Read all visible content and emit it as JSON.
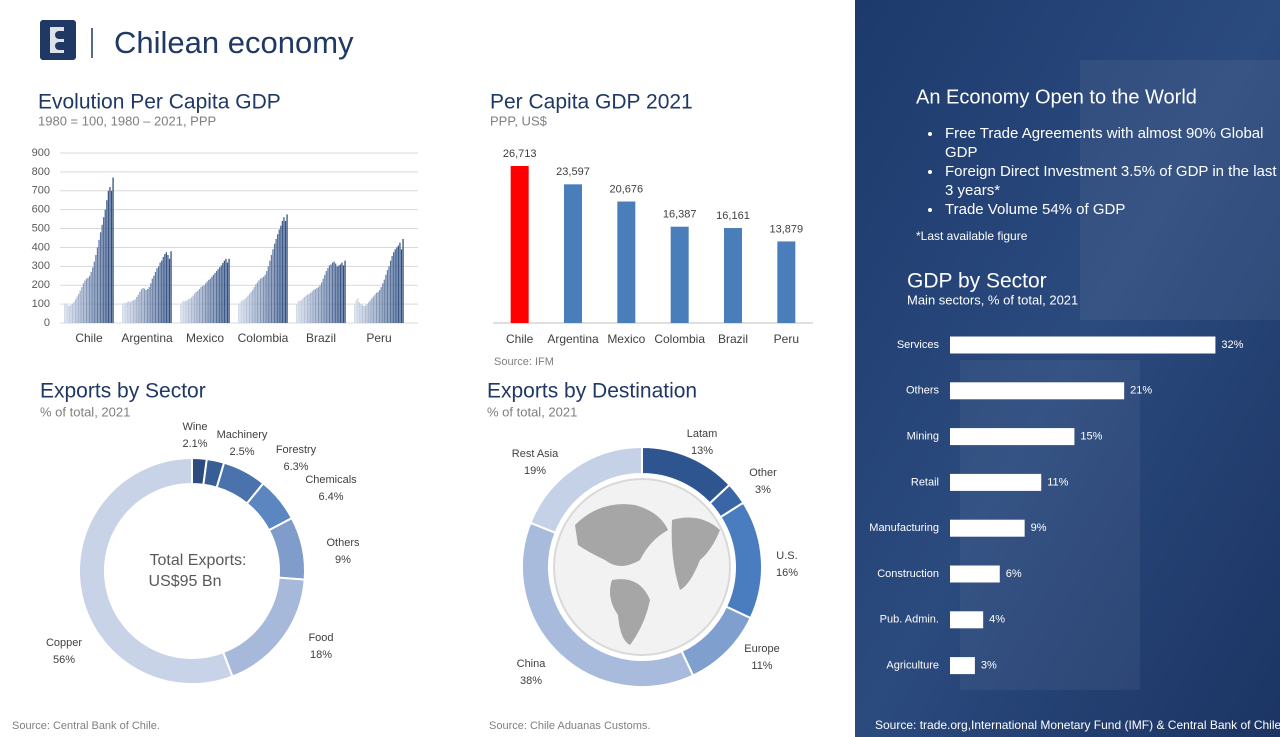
{
  "header": {
    "title": "Chilean economy"
  },
  "chart_data": [
    {
      "type": "grouped-bar",
      "title": "Evolution Per Capita GDP",
      "subtitle": "1980 = 100, 1980 – 2021, PPP",
      "categories": [
        "Chile",
        "Argentina",
        "Mexico",
        "Colombia",
        "Brazil",
        "Peru"
      ],
      "values": [
        [
          100,
          105,
          94,
          90,
          95,
          102,
          112,
          125,
          140,
          155,
          172,
          190,
          210,
          225,
          235,
          240,
          250,
          270,
          295,
          325,
          360,
          400,
          440,
          480,
          520,
          560,
          600,
          650,
          700,
          720,
          700,
          770
        ],
        [
          100,
          108,
          104,
          112,
          115,
          110,
          118,
          120,
          125,
          138,
          150,
          165,
          178,
          185,
          182,
          175,
          180,
          190,
          210,
          235,
          250,
          270,
          290,
          300,
          320,
          330,
          350,
          365,
          375,
          360,
          340,
          380
        ],
        [
          100,
          112,
          118,
          115,
          120,
          125,
          130,
          135,
          145,
          155,
          165,
          170,
          180,
          190,
          195,
          200,
          210,
          220,
          228,
          235,
          245,
          255,
          265,
          275,
          285,
          295,
          305,
          318,
          330,
          340,
          320,
          340
        ],
        [
          100,
          110,
          118,
          122,
          128,
          135,
          145,
          155,
          165,
          175,
          190,
          205,
          215,
          225,
          235,
          240,
          245,
          255,
          275,
          300,
          330,
          360,
          390,
          420,
          445,
          470,
          495,
          515,
          540,
          560,
          540,
          575
        ],
        [
          100,
          115,
          118,
          120,
          130,
          138,
          145,
          150,
          155,
          160,
          168,
          175,
          180,
          185,
          190,
          200,
          215,
          235,
          255,
          275,
          290,
          305,
          310,
          320,
          325,
          315,
          300,
          305,
          310,
          320,
          305,
          330
        ],
        [
          100,
          120,
          130,
          110,
          100,
          95,
          90,
          92,
          100,
          110,
          120,
          130,
          140,
          150,
          160,
          165,
          175,
          190,
          210,
          230,
          255,
          280,
          300,
          330,
          355,
          375,
          390,
          400,
          410,
          425,
          390,
          445
        ]
      ],
      "color_range": [
        "#d3dcec",
        "#2b4a7e"
      ],
      "ylim": [
        0,
        900
      ],
      "yticks": [
        0,
        100,
        200,
        300,
        400,
        500,
        600,
        700,
        800,
        900
      ],
      "grid": true
    },
    {
      "type": "bar",
      "title": "Per Capita GDP 2021",
      "subtitle": "PPP, US$",
      "categories": [
        "Chile",
        "Argentina",
        "Mexico",
        "Colombia",
        "Brazil",
        "Peru"
      ],
      "values": [
        26713,
        23597,
        20676,
        16387,
        16161,
        13879
      ],
      "value_labels": [
        "26,713",
        "23,597",
        "20,676",
        "16,387",
        "16,161",
        "13,879"
      ],
      "colors": [
        "#ff0000",
        "#4a7ebb",
        "#4a7ebb",
        "#4a7ebb",
        "#4a7ebb",
        "#4a7ebb"
      ],
      "ylim": [
        0,
        30000
      ],
      "source": "Source: IFM"
    },
    {
      "type": "donut",
      "title": "Exports by Sector",
      "subtitle": "% of total, 2021",
      "categories": [
        "Wine",
        "Machinery",
        "Forestry",
        "Chemicals",
        "Others",
        "Food",
        "Copper"
      ],
      "values": [
        2.1,
        2.5,
        6.3,
        6.4,
        9,
        18,
        56
      ],
      "value_labels": [
        "2.1%",
        "2.5%",
        "6.3%",
        "6.4%",
        "9%",
        "18%",
        "56%"
      ],
      "colors": [
        "#2c4c80",
        "#385e96",
        "#4a72ad",
        "#5b86c0",
        "#7f9cca",
        "#a7b9da",
        "#c9d3e7"
      ],
      "center_text": [
        "Total Exports:",
        "US$95 Bn"
      ],
      "source": "Source: Central Bank of Chile."
    },
    {
      "type": "donut",
      "title": "Exports by Destination",
      "subtitle": "% of total, 2021",
      "categories": [
        "Latam",
        "Other",
        "U.S.",
        "Europe",
        "China",
        "Rest Asia"
      ],
      "values": [
        13,
        3,
        16,
        11,
        38,
        19
      ],
      "value_labels": [
        "13%",
        "3%",
        "16%",
        "11%",
        "38%",
        "19%"
      ],
      "colors": [
        "#2f5590",
        "#3a66a8",
        "#4a7cc0",
        "#7f9fcf",
        "#a8bbdc",
        "#c5d1e6"
      ],
      "source": "Source: Chile Aduanas Customs."
    },
    {
      "type": "hbar",
      "title": "GDP by Sector",
      "subtitle": "Main sectors, % of total, 2021",
      "categories": [
        "Services",
        "Others",
        "Mining",
        "Retail",
        "Manufacturing",
        "Construction",
        "Pub. Admin.",
        "Agriculture"
      ],
      "values": [
        32,
        21,
        15,
        11,
        9,
        6,
        4,
        3
      ],
      "value_labels": [
        "32%",
        "21%",
        "15%",
        "11%",
        "9%",
        "6%",
        "4%",
        "3%"
      ],
      "color": "#ffffff",
      "xlim": [
        0,
        34
      ]
    }
  ],
  "panel": {
    "title": "An Economy Open to the World",
    "bullets": [
      "Free Trade Agreements with almost 90% Global GDP",
      "Foreign Direct Investment 3.5% of GDP in the last 3 years*",
      "Trade Volume 54% of GDP"
    ],
    "footnote": "*Last available figure",
    "source": "Source: trade.org,International Monetary Fund (IMF) &  Central Bank of Chile."
  }
}
